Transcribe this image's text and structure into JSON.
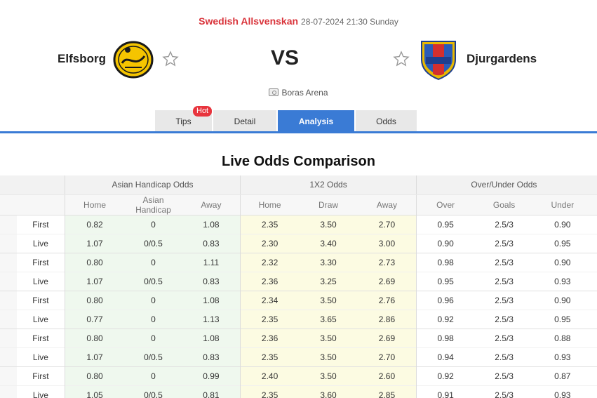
{
  "match": {
    "league": "Swedish Allsvenskan",
    "datetime": "28-07-2024 21:30 Sunday",
    "home_team": "Elfsborg",
    "away_team": "Djurgardens",
    "vs": "VS",
    "venue": "Boras Arena"
  },
  "tabs": [
    {
      "label": "Tips",
      "badge": "Hot"
    },
    {
      "label": "Detail"
    },
    {
      "label": "Analysis",
      "active": true
    },
    {
      "label": "Odds"
    }
  ],
  "section_title": "Live Odds Comparison",
  "table": {
    "groups": [
      "Asian Handicap Odds",
      "1X2 Odds",
      "Over/Under Odds"
    ],
    "subheaders": [
      "Home",
      "Asian Handicap",
      "Away",
      "Home",
      "Draw",
      "Away",
      "Over",
      "Goals",
      "Under"
    ],
    "rows": [
      {
        "label": "First",
        "cells": [
          "0.82",
          "0",
          "1.08",
          "2.35",
          "3.50",
          "2.70",
          "0.95",
          "2.5/3",
          "0.90"
        ]
      },
      {
        "label": "Live",
        "cells": [
          "1.07",
          "0/0.5",
          "0.83",
          "2.30",
          "3.40",
          "3.00",
          "0.90",
          "2.5/3",
          "0.95"
        ]
      },
      {
        "label": "First",
        "cells": [
          "0.80",
          "0",
          "1.11",
          "2.32",
          "3.30",
          "2.73",
          "0.98",
          "2.5/3",
          "0.90"
        ]
      },
      {
        "label": "Live",
        "cells": [
          "1.07",
          "0/0.5",
          "0.83",
          "2.36",
          "3.25",
          "2.69",
          "0.95",
          "2.5/3",
          "0.93"
        ]
      },
      {
        "label": "First",
        "cells": [
          "0.80",
          "0",
          "1.08",
          "2.34",
          "3.50",
          "2.76",
          "0.96",
          "2.5/3",
          "0.90"
        ]
      },
      {
        "label": "Live",
        "cells": [
          "0.77",
          "0",
          "1.13",
          "2.35",
          "3.65",
          "2.86",
          "0.92",
          "2.5/3",
          "0.95"
        ]
      },
      {
        "label": "First",
        "cells": [
          "0.80",
          "0",
          "1.08",
          "2.36",
          "3.50",
          "2.69",
          "0.98",
          "2.5/3",
          "0.88"
        ]
      },
      {
        "label": "Live",
        "cells": [
          "1.07",
          "0/0.5",
          "0.83",
          "2.35",
          "3.50",
          "2.70",
          "0.94",
          "2.5/3",
          "0.93"
        ]
      },
      {
        "label": "First",
        "cells": [
          "0.80",
          "0",
          "0.99",
          "2.40",
          "3.50",
          "2.60",
          "0.92",
          "2.5/3",
          "0.87"
        ]
      },
      {
        "label": "Live",
        "cells": [
          "1.05",
          "0/0.5",
          "0.81",
          "2.35",
          "3.60",
          "2.85",
          "0.91",
          "2.5/3",
          "0.93"
        ]
      }
    ]
  },
  "colors": {
    "accent": "#3a7bd5",
    "league": "#d9343b",
    "hot_badge": "#e8343d",
    "ah_bg": "#eff8ee",
    "x12_bg": "#fcfbe2"
  },
  "icons": {
    "home_logo": "elfsborg-crest-icon",
    "away_logo": "djurgardens-crest-icon",
    "favorite": "star-outline-icon",
    "venue": "stadium-icon"
  }
}
